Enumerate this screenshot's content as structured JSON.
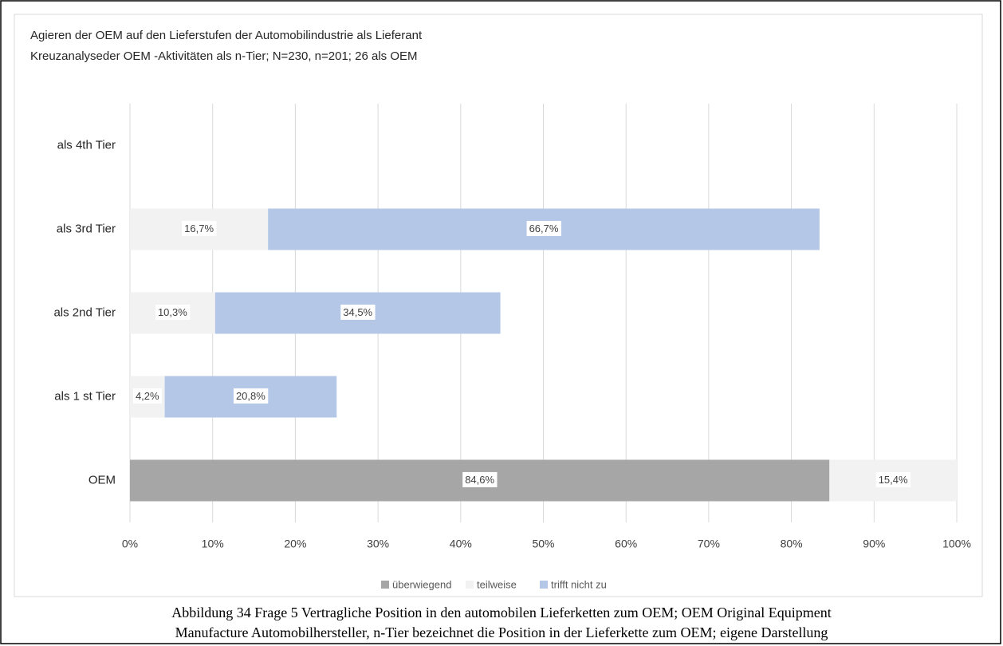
{
  "chart_data": {
    "type": "stacked_barh",
    "title": "Agieren der OEM auf den Lieferstufen der Automobilindustrie als Lieferant",
    "subtitle": "Kreuzanalyseder OEM -Aktivitäten als n-Tier; N=230, n=201; 26 als OEM",
    "caption": [
      "Abbildung 34 Frage 5 Vertragliche Position in den automobilen Lieferketten zum OEM; OEM Original Equipment",
      "Manufacture Automobilhersteller, n-Tier bezeichnet die Position in der Lieferkette zum OEM; eigene Darstellung"
    ],
    "categories": [
      "OEM",
      "als 1 st Tier",
      "als 2nd Tier",
      "als 3rd Tier",
      "als 4th Tier"
    ],
    "series": [
      {
        "name": "überwiegend",
        "color": "#a6a6a6",
        "values": [
          84.6,
          null,
          null,
          null,
          null
        ],
        "value_labels": [
          "84,6%",
          null,
          null,
          null,
          null
        ]
      },
      {
        "name": "teilweise",
        "color": "#f2f2f2",
        "values": [
          15.4,
          4.2,
          10.3,
          16.7,
          null
        ],
        "value_labels": [
          "15,4%",
          "4,2%",
          "10,3%",
          "16,7%",
          null
        ]
      },
      {
        "name": "trifft nicht zu",
        "color": "#b4c7e7",
        "values": [
          null,
          20.8,
          34.5,
          66.7,
          null
        ],
        "value_labels": [
          null,
          "20,8%",
          "34,5%",
          "66,7%",
          null
        ]
      }
    ],
    "xlim": [
      0,
      100
    ],
    "xticks": [
      {
        "value": 0,
        "label": "0%"
      },
      {
        "value": 10,
        "label": "10%"
      },
      {
        "value": 20,
        "label": "20%"
      },
      {
        "value": 30,
        "label": "30%"
      },
      {
        "value": 40,
        "label": "40%"
      },
      {
        "value": 50,
        "label": "50%"
      },
      {
        "value": 60,
        "label": "60%"
      },
      {
        "value": 70,
        "label": "70%"
      },
      {
        "value": 80,
        "label": "80%"
      },
      {
        "value": 90,
        "label": "90%"
      },
      {
        "value": 100,
        "label": "100%"
      }
    ],
    "grid": true,
    "legend": "bottom"
  }
}
